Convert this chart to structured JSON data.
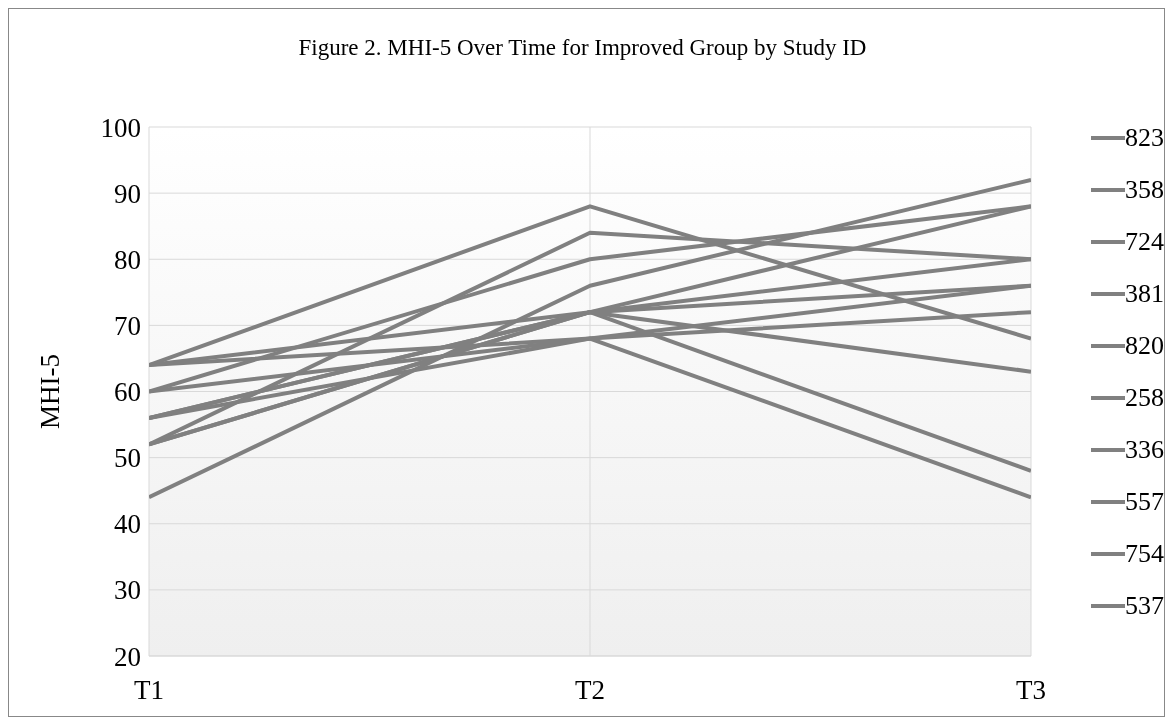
{
  "chart_data": {
    "type": "line",
    "title": "Figure 2.  MHI-5 Over Time for Improved Group by Study ID",
    "ylabel": "MHI-5",
    "categories": [
      "T1",
      "T2",
      "T3"
    ],
    "ylim": [
      20,
      100
    ],
    "yticks": [
      20,
      30,
      40,
      50,
      60,
      70,
      80,
      90,
      100
    ],
    "grid": true,
    "legend": "right",
    "marker": "none",
    "line_style": "solid",
    "series": [
      {
        "name": "823",
        "color": "#808080",
        "values": [
          64,
          88,
          68
        ]
      },
      {
        "name": "358",
        "color": "#808080",
        "values": [
          52,
          84,
          80
        ]
      },
      {
        "name": "724",
        "color": "#808080",
        "values": [
          60,
          80,
          88
        ]
      },
      {
        "name": "381",
        "color": "#808080",
        "values": [
          44,
          76,
          92
        ]
      },
      {
        "name": "820",
        "color": "#808080",
        "values": [
          64,
          72,
          88
        ]
      },
      {
        "name": "258",
        "color": "#808080",
        "values": [
          56,
          72,
          80
        ]
      },
      {
        "name": "336",
        "color": "#808080",
        "values": [
          52,
          72,
          76
        ]
      },
      {
        "name": "557",
        "color": "#808080",
        "values": [
          52,
          72,
          63
        ]
      },
      {
        "name": "754",
        "color": "#808080",
        "values": [
          56,
          72,
          48
        ]
      },
      {
        "name": "537",
        "color": "#808080",
        "values": [
          60,
          68,
          76
        ]
      },
      {
        "color": "#808080",
        "values": [
          64,
          68,
          72
        ]
      },
      {
        "color": "#808080",
        "values": [
          56,
          68,
          44
        ]
      }
    ]
  }
}
